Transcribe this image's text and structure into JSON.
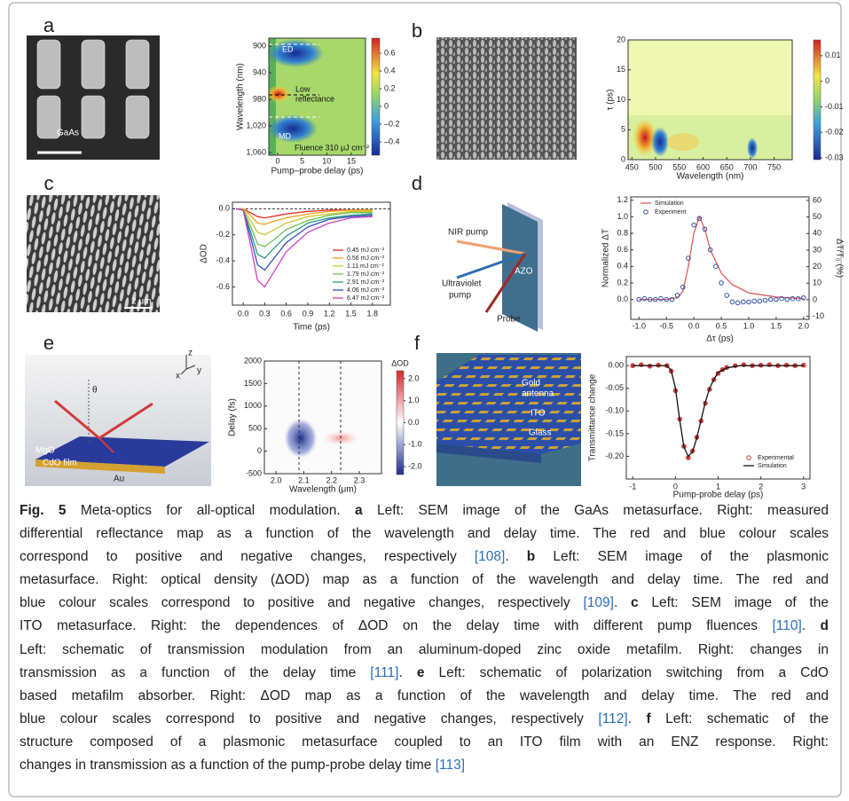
{
  "panels": [
    {
      "label": "a",
      "image_labels": [
        "GaAs"
      ],
      "chart": {
        "type": "heatmap",
        "xlabel": "Pump–probe delay (ps)",
        "ylabel": "Wavelength (nm)",
        "xlim": [
          -1.8,
          17.9
        ],
        "ylim": [
          1064,
          888
        ],
        "xticks": [
          0,
          5,
          10,
          15
        ],
        "yticks": [
          900,
          940,
          980,
          {
            "value": 1020,
            "label": "1,020"
          },
          {
            "value": 1060,
            "label": "1,060"
          }
        ],
        "colorbar": {
          "colormap": "jet",
          "lim": [
            -0.55,
            0.77
          ],
          "ticks": [
            0.6,
            0.4,
            0.2,
            0,
            {
              "value": -0.2,
              "label": "–0.2"
            },
            {
              "value": -0.4,
              "label": "–0.4"
            }
          ]
        },
        "annotations": [
          "ED",
          "Low",
          "reflectance",
          "MD",
          "Fluence 310 μJ cm⁻²"
        ]
      }
    },
    {
      "label": "b",
      "image_labels": [],
      "chart": {
        "type": "heatmap",
        "xlabel": "Wavelength (nm)",
        "ylabel": "τ (ps)",
        "xlim": [
          442,
          788
        ],
        "ylim": [
          0,
          20
        ],
        "xticks": [
          450,
          500,
          550,
          600,
          650,
          700,
          750
        ],
        "yticks": [
          0,
          5,
          10,
          15,
          20
        ],
        "colorbar": {
          "colormap": "jet",
          "lim": [
            -0.0307,
            0.0162
          ],
          "ticks": [
            0.01,
            0,
            -0.01,
            -0.02,
            -0.03
          ]
        }
      }
    },
    {
      "label": "c",
      "image_labels": [
        "2 μm"
      ],
      "chart": {
        "type": "line",
        "xlabel": "Time (ps)",
        "ylabel": "ΔOD",
        "xlim": [
          -0.15,
          2.05
        ],
        "ylim": [
          -0.74,
          0.05
        ],
        "xticks": [
          {
            "value": 0,
            "label": "0.0"
          },
          0.3,
          0.6,
          0.9,
          1.2,
          1.5,
          1.8
        ],
        "yticks": [
          {
            "value": 0,
            "label": "0.0"
          },
          -0.2,
          -0.4,
          -0.6
        ],
        "x": [
          -0.1,
          0,
          0.1,
          0.2,
          0.3,
          0.4,
          0.6,
          0.9,
          1.2,
          1.5,
          1.8
        ],
        "series": [
          {
            "name": "0.45 mJ cm⁻²",
            "color": "#e0302a",
            "style": "line",
            "values": [
              0,
              0,
              -0.03,
              -0.06,
              -0.07,
              -0.06,
              -0.04,
              -0.02,
              -0.01,
              -0.01,
              -0.01
            ]
          },
          {
            "name": "0.56 mJ cm⁻²",
            "color": "#f0a020",
            "style": "line",
            "values": [
              0,
              0,
              -0.05,
              -0.11,
              -0.12,
              -0.1,
              -0.07,
              -0.04,
              -0.02,
              -0.01,
              -0.01
            ]
          },
          {
            "name": "1.11 mJ cm⁻²",
            "color": "#c8c830",
            "style": "line",
            "values": [
              0,
              0,
              -0.09,
              -0.18,
              -0.2,
              -0.17,
              -0.11,
              -0.06,
              -0.04,
              -0.02,
              -0.02
            ]
          },
          {
            "name": "1.79 mJ cm⁻²",
            "color": "#70c050",
            "style": "line",
            "values": [
              0,
              -0.01,
              -0.13,
              -0.27,
              -0.29,
              -0.25,
              -0.16,
              -0.09,
              -0.05,
              -0.03,
              -0.03
            ]
          },
          {
            "name": "2.91 mJ cm⁻²",
            "color": "#2a9a80",
            "style": "line",
            "values": [
              0,
              -0.01,
              -0.17,
              -0.35,
              -0.38,
              -0.32,
              -0.21,
              -0.11,
              -0.07,
              -0.05,
              -0.04
            ]
          },
          {
            "name": "4.06 mJ cm⁻²",
            "color": "#3050c0",
            "style": "line",
            "values": [
              0,
              -0.01,
              -0.21,
              -0.43,
              -0.47,
              -0.4,
              -0.26,
              -0.14,
              -0.08,
              -0.06,
              -0.05
            ]
          },
          {
            "name": "6.47 mJ cm⁻²",
            "color": "#d040c0",
            "style": "line",
            "values": [
              0,
              -0.01,
              -0.27,
              -0.55,
              -0.6,
              -0.51,
              -0.33,
              -0.18,
              -0.11,
              -0.07,
              -0.06
            ]
          }
        ]
      }
    },
    {
      "label": "d",
      "image_labels": [
        "NIR pump",
        "Ultraviolet",
        "pump",
        "Probe",
        "AZO"
      ],
      "chart": {
        "type": "line",
        "xlabel": "Δτ (ps)",
        "ylabel": "Normalized ΔT",
        "y2label": "ΔT/T₀ (%)",
        "xlim": [
          -1.15,
          2.1
        ],
        "ylim": [
          -0.24,
          1.24
        ],
        "y2lim": [
          -11.8,
          62.1
        ],
        "xticks": [
          {
            "value": -1,
            "label": "-1.0"
          },
          -0.5,
          {
            "value": 0,
            "label": "0.0"
          },
          0.5,
          {
            "value": 1,
            "label": "1.0"
          },
          1.5,
          {
            "value": 2,
            "label": "2.0"
          }
        ],
        "yticks": [
          {
            "value": 0,
            "label": "0.0"
          },
          0.2,
          0.4,
          0.6,
          0.8,
          {
            "value": 1,
            "label": "1.0"
          },
          1.2
        ],
        "y2ticks": [
          -10,
          0,
          10,
          20,
          30,
          40,
          50,
          60
        ],
        "series": [
          {
            "name": "Simulation",
            "color": "#e05a5a",
            "style": "line",
            "x": [
              -1,
              -0.5,
              -0.3,
              -0.2,
              -0.1,
              0,
              0.1,
              0.2,
              0.3,
              0.5,
              0.7,
              1,
              1.5,
              2
            ],
            "values": [
              0,
              0,
              0.02,
              0.1,
              0.4,
              0.8,
              1,
              0.85,
              0.6,
              0.32,
              0.18,
              0.08,
              0.03,
              0.01
            ]
          },
          {
            "name": "Experiment",
            "color": "#3050a8",
            "style": "markers",
            "x": [
              -1,
              -0.9,
              -0.8,
              -0.7,
              -0.6,
              -0.5,
              -0.4,
              -0.3,
              -0.2,
              -0.1,
              0,
              0.1,
              0.2,
              0.3,
              0.4,
              0.5,
              0.6,
              0.7,
              0.8,
              0.9,
              1,
              1.1,
              1.2,
              1.3,
              1.4,
              1.5,
              1.6,
              1.7,
              1.8,
              1.9,
              2
            ],
            "values": [
              0,
              0.01,
              0,
              0,
              0.01,
              0,
              0,
              0.05,
              0.15,
              0.5,
              0.9,
              0.98,
              0.85,
              0.6,
              0.4,
              0.2,
              0.05,
              -0.03,
              -0.04,
              -0.03,
              -0.03,
              -0.02,
              -0.02,
              -0.01,
              0,
              0,
              0.01,
              0,
              0.01,
              0.01,
              0.02
            ]
          }
        ]
      }
    },
    {
      "label": "e",
      "image_labels": [
        "MgO",
        "CdO film",
        "Au",
        "θ",
        "z",
        "x",
        "y"
      ],
      "chart": {
        "type": "heatmap",
        "xlabel": "Wavelength (μm)",
        "ylabel": "Delay (fs)",
        "xlim": [
          1.958,
          2.38
        ],
        "ylim": [
          -500,
          2000
        ],
        "xticks": [
          {
            "value": 2,
            "label": "2.0"
          },
          2.1,
          2.2,
          2.3
        ],
        "yticks": [
          -500,
          0,
          500,
          1000,
          1500,
          2000
        ],
        "colorbar": {
          "colormap": "bwr",
          "title": "ΔOD",
          "lim": [
            -2.36,
            2.36
          ],
          "ticks": [
            {
              "value": 2,
              "label": "2.0"
            },
            {
              "value": 1,
              "label": "1.0"
            },
            {
              "value": 0,
              "label": "0.0"
            },
            {
              "value": -1,
              "label": "-1.0"
            },
            {
              "value": -2,
              "label": "-2.0"
            }
          ]
        }
      }
    },
    {
      "label": "f",
      "image_labels": [
        "Gold",
        "antenna",
        "ITO",
        "Glass"
      ],
      "chart": {
        "type": "line",
        "xlabel": "Pump-probe delay (ps)",
        "ylabel": "Transmittance change",
        "xlim": [
          -1.15,
          3.15
        ],
        "ylim": [
          -0.25,
          0.02
        ],
        "xticks": [
          -1,
          0,
          1,
          2,
          3
        ],
        "yticks": [
          {
            "value": 0,
            "label": "0.00"
          },
          -0.05,
          {
            "value": -0.1,
            "label": "-0.10"
          },
          -0.15,
          {
            "value": -0.2,
            "label": "-0.20"
          }
        ],
        "series": [
          {
            "name": "Experimental",
            "color": "#d04040",
            "style": "markers",
            "x": [
              -1,
              -0.8,
              -0.6,
              -0.4,
              -0.2,
              -0.1,
              0,
              0.1,
              0.2,
              0.3,
              0.4,
              0.5,
              0.6,
              0.7,
              0.8,
              0.9,
              1,
              1.1,
              1.2,
              1.4,
              1.6,
              1.8,
              2,
              2.2,
              2.4,
              2.6,
              2.8,
              3
            ],
            "values": [
              0,
              0.002,
              -0.001,
              0.001,
              0,
              -0.012,
              -0.055,
              -0.118,
              -0.178,
              -0.203,
              -0.188,
              -0.158,
              -0.122,
              -0.083,
              -0.052,
              -0.031,
              -0.017,
              -0.009,
              -0.004,
              0,
              0.002,
              0,
              0.001,
              0.002,
              0,
              0.001,
              0,
              0.001
            ]
          },
          {
            "name": "Simulation",
            "color": "#111111",
            "style": "line",
            "x": [
              -1,
              -0.2,
              -0.1,
              0,
              0.1,
              0.2,
              0.3,
              0.4,
              0.5,
              0.6,
              0.7,
              0.8,
              0.9,
              1,
              1.2,
              1.5,
              2,
              3
            ],
            "values": [
              0,
              0,
              -0.01,
              -0.05,
              -0.12,
              -0.18,
              -0.2,
              -0.19,
              -0.16,
              -0.12,
              -0.08,
              -0.05,
              -0.03,
              -0.015,
              -0.005,
              0,
              0,
              0
            ]
          }
        ]
      }
    }
  ],
  "caption": {
    "lines": [
      [
        {
          "bold": "Fig. 5"
        },
        " Meta-optics for all-optical modulation. ",
        {
          "bold": "a"
        },
        " Left: SEM image of the GaAs metasurface. Right: measured"
      ],
      [
        "differential reflectance map as a function of the wavelength and delay time. The red and blue colour scales"
      ],
      [
        "correspond to positive and negative changes, respectively ",
        {
          "ref": "[108]"
        },
        ". ",
        {
          "bold": "b"
        },
        " Left: SEM image of the plasmonic"
      ],
      [
        "metasurface. Right: optical density (ΔOD) map as a function of the wavelength and delay time. The red and"
      ],
      [
        "blue colour scales correspond to positive and negative changes, respectively ",
        {
          "ref": "[109]"
        },
        ". ",
        {
          "bold": "c"
        },
        " Left: SEM image of the"
      ],
      [
        "ITO metasurface. Right: the dependences of ΔOD on the delay time with different pump fluences ",
        {
          "ref": "[110]"
        },
        ". ",
        {
          "bold": "d"
        }
      ],
      [
        "Left: schematic of transmission modulation from an aluminum-doped zinc oxide metafilm. Right: changes in"
      ],
      [
        "transmission as a function of the delay time ",
        {
          "ref": "[111]"
        },
        ". ",
        {
          "bold": "e"
        },
        " Left: schematic of polarization switching from a CdO"
      ],
      [
        "based metafilm absorber. Right: ΔOD map as a function of the wavelength and delay time. The red and"
      ],
      [
        "blue colour scales correspond to positive and negative changes, respectively ",
        {
          "ref": "[112]"
        },
        ". ",
        {
          "bold": "f"
        },
        " Left: schematic of the"
      ],
      [
        "structure composed of a plasmonic metasurface coupled to an ITO film with an ENZ response. Right:"
      ],
      [
        "changes in transmission as a function of the pump-probe delay time ",
        {
          "ref": "[113]"
        }
      ]
    ]
  }
}
